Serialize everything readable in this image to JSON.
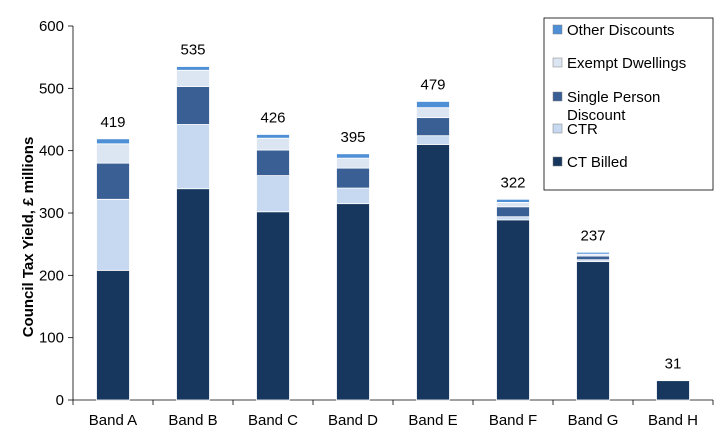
{
  "chart_data": {
    "type": "bar",
    "stacked": true,
    "ylabel": "Council Tax Yield, £ millions",
    "xlabel": "",
    "title": "",
    "ylim": [
      0,
      600
    ],
    "yticks": [
      0,
      100,
      200,
      300,
      400,
      500,
      600
    ],
    "grid": false,
    "legend_position": "top-right",
    "categories": [
      "Band A",
      "Band B",
      "Band C",
      "Band D",
      "Band E",
      "Band F",
      "Band G",
      "Band H"
    ],
    "totals": [
      "419",
      "535",
      "426",
      "395",
      "479",
      "322",
      "237",
      "31"
    ],
    "series": [
      {
        "name": "CT Billed",
        "color": "#17375e",
        "values": [
          208,
          339,
          302,
          315,
          410,
          289,
          222,
          31
        ]
      },
      {
        "name": "CTR",
        "color": "#c6d9f1",
        "values": [
          114,
          103,
          58,
          25,
          14,
          5,
          3,
          0
        ]
      },
      {
        "name": "Single Person Discount",
        "color": "#3a5f94",
        "values": [
          58,
          61,
          41,
          32,
          29,
          16,
          6,
          0
        ]
      },
      {
        "name": "Exempt Dwellings",
        "color": "#dce6f2",
        "values": [
          31,
          26,
          19,
          16,
          16,
          7,
          3,
          0
        ]
      },
      {
        "name": "Other Discounts",
        "color": "#4f8fd6",
        "values": [
          8,
          6,
          6,
          7,
          10,
          5,
          3,
          0
        ]
      }
    ],
    "legend_order": [
      "Other Discounts",
      "Exempt Dwellings",
      "Single Person Discount",
      "CTR",
      "CT Billed"
    ]
  }
}
